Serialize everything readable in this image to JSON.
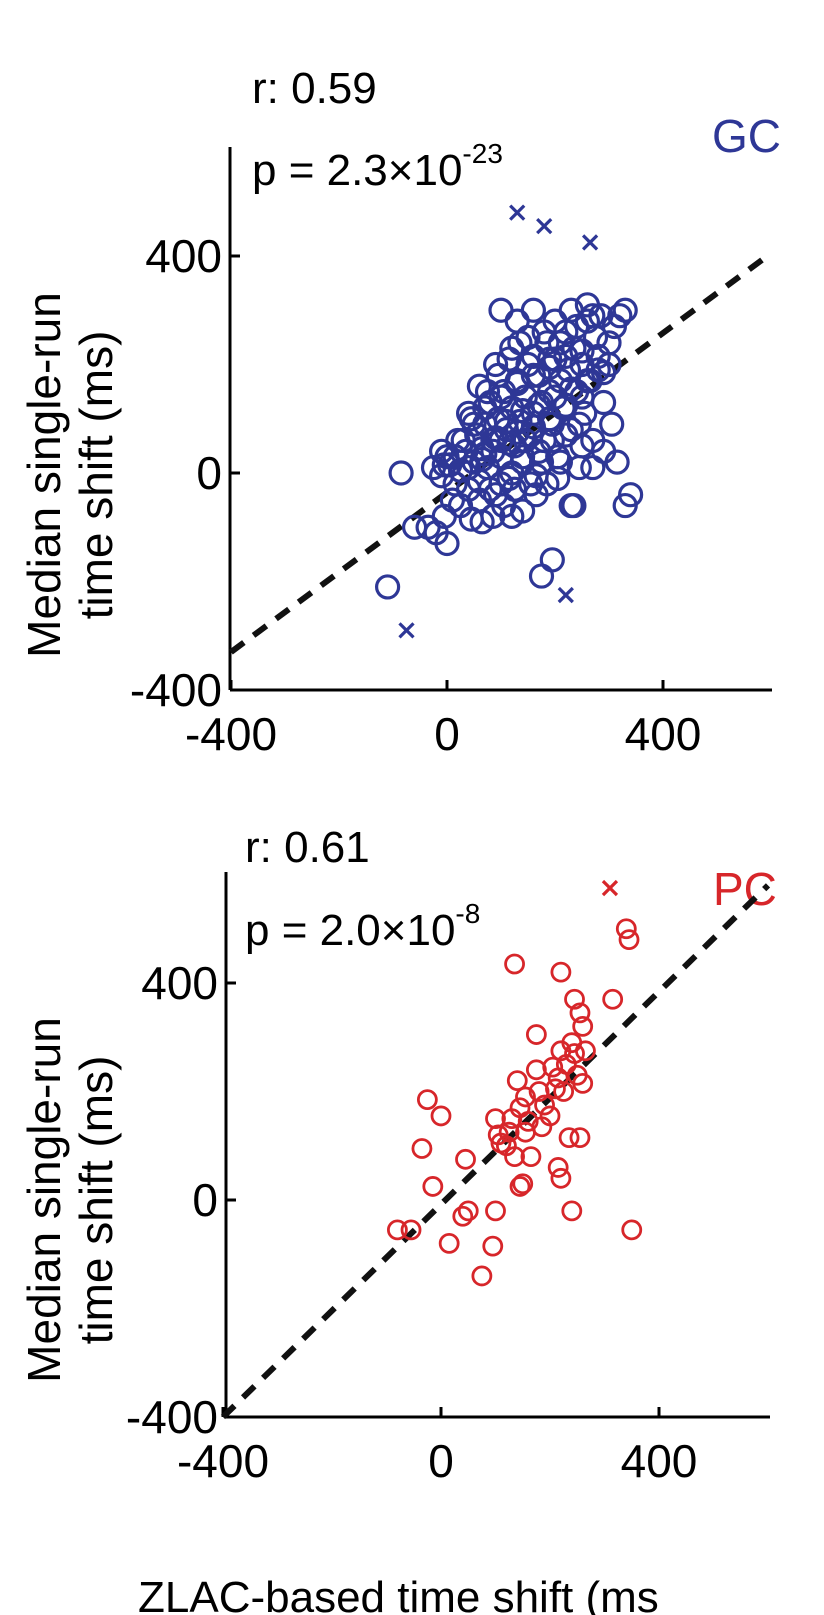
{
  "chart_data": [
    {
      "type": "scatter",
      "panel": "GC",
      "legend": "GC",
      "color": "#2e3796",
      "stat_r": "r: 0.59",
      "stat_p_prefix": "p = 2.3×10",
      "stat_p_exp": "-23",
      "ylabel_line1": "Median single-run",
      "ylabel_line2": "time shift (ms)",
      "xlim": [
        -400,
        600
      ],
      "ylim": [
        -400,
        600
      ],
      "xticks": [
        -400,
        0,
        400
      ],
      "yticks": [
        -400,
        0,
        400
      ],
      "xtick_labels": [
        "-400",
        "0",
        "400"
      ],
      "ytick_labels": [
        "-400",
        "0",
        "400"
      ],
      "identity_line": [
        [
          -400,
          -330
        ],
        [
          600,
          405
        ]
      ],
      "points": [
        [
          -25,
          10
        ],
        [
          -10,
          -5
        ],
        [
          5,
          15
        ],
        [
          15,
          -20
        ],
        [
          25,
          5
        ],
        [
          35,
          40
        ],
        [
          40,
          -30
        ],
        [
          50,
          20
        ],
        [
          55,
          70
        ],
        [
          60,
          -15
        ],
        [
          65,
          45
        ],
        [
          70,
          90
        ],
        [
          75,
          10
        ],
        [
          80,
          130
        ],
        [
          85,
          60
        ],
        [
          90,
          -40
        ],
        [
          95,
          100
        ],
        [
          100,
          30
        ],
        [
          105,
          150
        ],
        [
          110,
          80
        ],
        [
          115,
          -10
        ],
        [
          120,
          120
        ],
        [
          125,
          50
        ],
        [
          130,
          170
        ],
        [
          135,
          95
        ],
        [
          140,
          20
        ],
        [
          145,
          140
        ],
        [
          150,
          200
        ],
        [
          155,
          70
        ],
        [
          160,
          110
        ],
        [
          165,
          -5
        ],
        [
          170,
          180
        ],
        [
          175,
          130
        ],
        [
          180,
          60
        ],
        [
          185,
          240
        ],
        [
          190,
          150
        ],
        [
          195,
          90
        ],
        [
          200,
          210
        ],
        [
          205,
          30
        ],
        [
          210,
          170
        ],
        [
          215,
          120
        ],
        [
          220,
          260
        ],
        [
          225,
          190
        ],
        [
          230,
          80
        ],
        [
          235,
          230
        ],
        [
          240,
          150
        ],
        [
          245,
          10
        ],
        [
          250,
          200
        ],
        [
          255,
          110
        ],
        [
          260,
          280
        ],
        [
          265,
          170
        ],
        [
          270,
          60
        ],
        [
          275,
          250
        ],
        [
          280,
          190
        ],
        [
          285,
          290
        ],
        [
          290,
          130
        ],
        [
          300,
          240
        ],
        [
          310,
          270
        ],
        [
          320,
          290
        ],
        [
          330,
          300
        ],
        [
          100,
          300
        ],
        [
          130,
          280
        ],
        [
          160,
          300
        ],
        [
          200,
          280
        ],
        [
          230,
          300
        ],
        [
          260,
          310
        ],
        [
          180,
          260
        ],
        [
          150,
          250
        ],
        [
          120,
          230
        ],
        [
          90,
          200
        ],
        [
          60,
          160
        ],
        [
          40,
          110
        ],
        [
          20,
          60
        ],
        [
          0,
          30
        ],
        [
          -10,
          40
        ],
        [
          45,
          100
        ],
        [
          75,
          150
        ],
        [
          95,
          180
        ],
        [
          115,
          210
        ],
        [
          135,
          240
        ],
        [
          160,
          215
        ],
        [
          190,
          210
        ],
        [
          210,
          240
        ],
        [
          240,
          270
        ],
        [
          270,
          290
        ],
        [
          145,
          60
        ],
        [
          175,
          20
        ],
        [
          205,
          -10
        ],
        [
          230,
          -60
        ],
        [
          155,
          -20
        ],
        [
          125,
          -30
        ],
        [
          105,
          -60
        ],
        [
          85,
          -80
        ],
        [
          65,
          -90
        ],
        [
          45,
          -85
        ],
        [
          25,
          -60
        ],
        [
          10,
          -50
        ],
        [
          -5,
          -80
        ],
        [
          -20,
          -110
        ],
        [
          -35,
          -100
        ],
        [
          0,
          -130
        ],
        [
          -60,
          -100
        ],
        [
          -85,
          0
        ],
        [
          -110,
          -210
        ],
        [
          195,
          -160
        ],
        [
          175,
          -190
        ],
        [
          235,
          -60
        ],
        [
          330,
          -60
        ],
        [
          340,
          -40
        ],
        [
          120,
          -80
        ],
        [
          140,
          -70
        ],
        [
          165,
          -40
        ],
        [
          185,
          -20
        ],
        [
          210,
          20
        ],
        [
          250,
          50
        ],
        [
          270,
          10
        ],
        [
          290,
          40
        ],
        [
          305,
          90
        ],
        [
          315,
          20
        ],
        [
          60,
          -50
        ],
        [
          80,
          -30
        ],
        [
          100,
          -20
        ],
        [
          120,
          0
        ],
        [
          140,
          30
        ],
        [
          170,
          40
        ],
        [
          195,
          60
        ],
        [
          220,
          70
        ],
        [
          245,
          90
        ],
        [
          100,
          60
        ],
        [
          130,
          75
        ],
        [
          160,
          85
        ],
        [
          190,
          100
        ],
        [
          220,
          125
        ],
        [
          250,
          140
        ],
        [
          70,
          35
        ],
        [
          90,
          65
        ],
        [
          110,
          95
        ],
        [
          140,
          115
        ],
        [
          170,
          125
        ],
        [
          200,
          140
        ],
        [
          230,
          155
        ],
        [
          260,
          170
        ],
        [
          290,
          185
        ],
        [
          300,
          200
        ],
        [
          280,
          215
        ],
        [
          250,
          225
        ],
        [
          220,
          215
        ],
        [
          190,
          195
        ],
        [
          160,
          180
        ],
        [
          130,
          165
        ],
        [
          100,
          140
        ],
        [
          70,
          120
        ],
        [
          50,
          90
        ],
        [
          30,
          60
        ],
        [
          15,
          30
        ],
        [
          -5,
          15
        ],
        [
          40,
          10
        ],
        [
          65,
          25
        ],
        [
          85,
          40
        ],
        [
          115,
          55
        ]
      ],
      "crosses": [
        [
          130,
          480
        ],
        [
          180,
          455
        ],
        [
          265,
          425
        ],
        [
          -75,
          -290
        ],
        [
          220,
          -225
        ]
      ]
    },
    {
      "type": "scatter",
      "panel": "PC",
      "legend": "PC",
      "color": "#d7262a",
      "stat_r": "r: 0.61",
      "stat_p_prefix": "p = 2.0×10",
      "stat_p_exp": "-8",
      "ylabel_line1": "Median single-run",
      "ylabel_line2": "time shift (ms)",
      "xlabel": "ZLAC-based time shift (ms",
      "xlim": [
        -400,
        600
      ],
      "ylim": [
        -400,
        600
      ],
      "xticks": [
        -400,
        0,
        400
      ],
      "yticks": [
        -400,
        0,
        400
      ],
      "xtick_labels": [
        "-400",
        "0",
        "400"
      ],
      "ytick_labels": [
        "-400",
        "0",
        "400"
      ],
      "identity_line": [
        [
          -400,
          -400
        ],
        [
          600,
          580
        ]
      ],
      "points": [
        [
          135,
          435
        ],
        [
          220,
          420
        ],
        [
          340,
          500
        ],
        [
          345,
          480
        ],
        [
          315,
          370
        ],
        [
          245,
          370
        ],
        [
          255,
          345
        ],
        [
          260,
          320
        ],
        [
          240,
          290
        ],
        [
          175,
          305
        ],
        [
          220,
          275
        ],
        [
          245,
          270
        ],
        [
          205,
          245
        ],
        [
          175,
          240
        ],
        [
          215,
          225
        ],
        [
          250,
          230
        ],
        [
          260,
          215
        ],
        [
          225,
          200
        ],
        [
          140,
          220
        ],
        [
          155,
          190
        ],
        [
          180,
          200
        ],
        [
          145,
          170
        ],
        [
          100,
          150
        ],
        [
          125,
          125
        ],
        [
          110,
          105
        ],
        [
          155,
          125
        ],
        [
          235,
          115
        ],
        [
          255,
          115
        ],
        [
          165,
          80
        ],
        [
          135,
          80
        ],
        [
          215,
          60
        ],
        [
          220,
          40
        ],
        [
          45,
          75
        ],
        [
          -25,
          185
        ],
        [
          0,
          155
        ],
        [
          -35,
          95
        ],
        [
          50,
          -20
        ],
        [
          40,
          -30
        ],
        [
          -15,
          25
        ],
        [
          -55,
          -55
        ],
        [
          -80,
          -55
        ],
        [
          15,
          -80
        ],
        [
          100,
          -20
        ],
        [
          95,
          -85
        ],
        [
          75,
          -140
        ],
        [
          150,
          30
        ],
        [
          145,
          25
        ],
        [
          240,
          -20
        ],
        [
          350,
          -55
        ],
        [
          105,
          120
        ],
        [
          120,
          100
        ],
        [
          190,
          175
        ],
        [
          200,
          155
        ],
        [
          230,
          250
        ],
        [
          265,
          275
        ],
        [
          210,
          205
        ],
        [
          160,
          145
        ],
        [
          130,
          150
        ],
        [
          185,
          135
        ]
      ],
      "crosses": [
        [
          310,
          575
        ]
      ]
    }
  ]
}
